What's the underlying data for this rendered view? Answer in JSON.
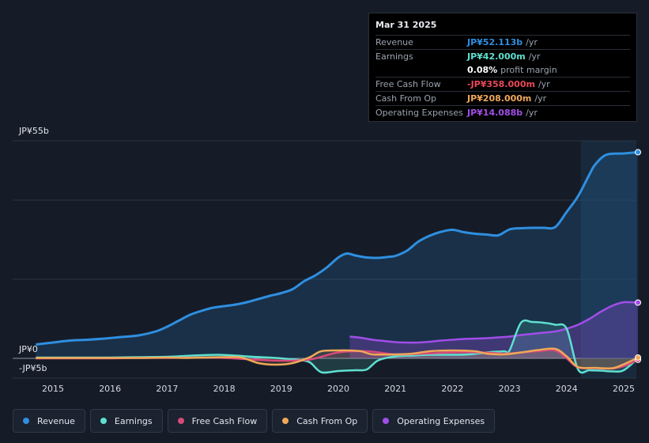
{
  "tooltip": {
    "date": "Mar 31 2025",
    "rows": [
      {
        "label": "Revenue",
        "value": "JP¥52.113b",
        "unit": "/yr",
        "color": "#2f8fe0"
      },
      {
        "label": "Earnings",
        "value": "JP¥42.000m",
        "unit": "/yr",
        "color": "#5ee0d0"
      },
      {
        "label": "",
        "value": "0.08%",
        "unit": "profit margin",
        "color": "#ffffff"
      },
      {
        "label": "Free Cash Flow",
        "value": "-JP¥358.000m",
        "unit": "/yr",
        "color": "#e8485a"
      },
      {
        "label": "Cash From Op",
        "value": "JP¥208.000m",
        "unit": "/yr",
        "color": "#f0a858"
      },
      {
        "label": "Operating Expenses",
        "value": "JP¥14.088b",
        "unit": "/yr",
        "color": "#a14ee8"
      }
    ]
  },
  "legend": [
    {
      "label": "Revenue",
      "color": "#2f8fe0"
    },
    {
      "label": "Earnings",
      "color": "#5ee0d0"
    },
    {
      "label": "Free Cash Flow",
      "color": "#d6497a"
    },
    {
      "label": "Cash From Op",
      "color": "#f0a858"
    },
    {
      "label": "Operating Expenses",
      "color": "#a14ee8"
    }
  ],
  "chart_data": {
    "type": "area",
    "title": "",
    "unit": "JP¥ billions",
    "ylim": [
      -5,
      55
    ],
    "y_tick_labels": {
      "top": "JP¥55b",
      "zero": "JP¥0",
      "bottom": "-JP¥5b"
    },
    "x_tick_labels": [
      "2015",
      "2016",
      "2017",
      "2018",
      "2019",
      "2020",
      "2021",
      "2022",
      "2023",
      "2024",
      "2025"
    ],
    "highlight_from": 2024.25,
    "series": [
      {
        "name": "Revenue",
        "color": "#2f8fe0",
        "x": [
          2014.7,
          2015.0,
          2015.3,
          2015.6,
          2015.9,
          2016.2,
          2016.5,
          2016.8,
          2017.0,
          2017.2,
          2017.4,
          2017.6,
          2017.8,
          2018.0,
          2018.2,
          2018.4,
          2018.6,
          2018.8,
          2019.0,
          2019.2,
          2019.4,
          2019.6,
          2019.8,
          2020.0,
          2020.15,
          2020.3,
          2020.5,
          2020.7,
          2020.9,
          2021.0,
          2021.2,
          2021.4,
          2021.6,
          2021.8,
          2022.0,
          2022.2,
          2022.4,
          2022.6,
          2022.8,
          2023.0,
          2023.2,
          2023.4,
          2023.6,
          2023.8,
          2024.0,
          2024.2,
          2024.4,
          2024.5,
          2024.7,
          2025.0,
          2025.25
        ],
        "values": [
          3.5,
          4.0,
          4.5,
          4.7,
          5.0,
          5.4,
          5.8,
          6.8,
          8.0,
          9.5,
          11.0,
          12.0,
          12.8,
          13.2,
          13.6,
          14.2,
          15.0,
          15.8,
          16.5,
          17.5,
          19.5,
          21.0,
          23.0,
          25.5,
          26.5,
          26.0,
          25.5,
          25.4,
          25.7,
          25.9,
          27.2,
          29.5,
          31.0,
          32.0,
          32.5,
          31.9,
          31.5,
          31.3,
          31.1,
          32.6,
          32.9,
          33.0,
          33.0,
          33.2,
          37.0,
          41.0,
          46.5,
          49.0,
          51.5,
          51.8,
          52.113
        ]
      },
      {
        "name": "Operating Expenses",
        "color": "#a14ee8",
        "x": [
          2020.2,
          2020.4,
          2020.6,
          2020.8,
          2021.0,
          2021.2,
          2021.4,
          2021.6,
          2021.8,
          2022.0,
          2022.2,
          2022.4,
          2022.6,
          2022.8,
          2023.0,
          2023.2,
          2023.4,
          2023.6,
          2023.8,
          2024.0,
          2024.2,
          2024.4,
          2024.6,
          2024.8,
          2025.0,
          2025.25
        ],
        "values": [
          5.5,
          5.2,
          4.7,
          4.4,
          4.1,
          4.0,
          4.0,
          4.2,
          4.5,
          4.7,
          4.9,
          5.0,
          5.1,
          5.3,
          5.5,
          5.9,
          6.2,
          6.5,
          6.8,
          7.5,
          8.5,
          10.0,
          11.8,
          13.3,
          14.2,
          14.088
        ]
      },
      {
        "name": "Earnings",
        "color": "#5ee0d0",
        "x": [
          2014.7,
          2015.0,
          2015.5,
          2016.0,
          2016.5,
          2017.0,
          2017.3,
          2017.6,
          2017.9,
          2018.2,
          2018.5,
          2018.8,
          2019.0,
          2019.3,
          2019.5,
          2019.7,
          2020.0,
          2020.3,
          2020.5,
          2020.7,
          2021.0,
          2021.3,
          2021.6,
          2022.0,
          2022.3,
          2022.6,
          2022.9,
          2023.0,
          2023.2,
          2023.4,
          2023.6,
          2023.8,
          2024.0,
          2024.2,
          2024.4,
          2024.6,
          2024.8,
          2025.0,
          2025.25
        ],
        "values": [
          0.2,
          0.2,
          0.2,
          0.2,
          0.3,
          0.4,
          0.6,
          0.8,
          0.9,
          0.7,
          0.4,
          0.2,
          0.0,
          -0.4,
          -1.0,
          -3.5,
          -3.2,
          -3.0,
          -2.8,
          -0.5,
          0.5,
          0.7,
          0.9,
          0.9,
          1.0,
          1.5,
          1.8,
          2.0,
          9.0,
          9.2,
          9.0,
          8.5,
          7.5,
          -2.8,
          -3.0,
          -3.1,
          -3.3,
          -3.0,
          0.042
        ]
      },
      {
        "name": "Free Cash Flow",
        "color": "#d6497a",
        "x": [
          2014.7,
          2015.0,
          2015.5,
          2016.0,
          2016.5,
          2017.0,
          2017.5,
          2018.0,
          2018.5,
          2019.0,
          2019.5,
          2020.0,
          2020.5,
          2021.0,
          2021.5,
          2022.0,
          2022.5,
          2022.9,
          2023.2,
          2023.5,
          2023.8,
          2024.0,
          2024.2,
          2024.5,
          2024.8,
          2025.0,
          2025.25
        ],
        "values": [
          0.0,
          0.0,
          0.0,
          0.0,
          0.1,
          0.1,
          0.2,
          0.1,
          -0.3,
          -0.6,
          -0.3,
          1.5,
          1.8,
          1.0,
          1.2,
          1.5,
          1.5,
          1.2,
          1.5,
          1.8,
          2.0,
          0.0,
          -2.3,
          -2.5,
          -2.6,
          -2.0,
          -0.358
        ]
      },
      {
        "name": "Cash From Op",
        "color": "#f0a858",
        "x": [
          2014.7,
          2015.0,
          2015.5,
          2016.0,
          2016.5,
          2017.0,
          2017.3,
          2017.6,
          2018.0,
          2018.3,
          2018.6,
          2018.9,
          2019.2,
          2019.5,
          2019.7,
          2020.0,
          2020.2,
          2020.4,
          2020.6,
          2021.0,
          2021.3,
          2021.6,
          2022.0,
          2022.4,
          2022.6,
          2022.9,
          2023.2,
          2023.5,
          2023.8,
          2024.0,
          2024.2,
          2024.5,
          2024.8,
          2025.0,
          2025.25
        ],
        "values": [
          0.1,
          0.1,
          0.1,
          0.1,
          0.1,
          0.2,
          0.1,
          0.2,
          0.3,
          0.2,
          -1.2,
          -1.6,
          -1.2,
          0.3,
          1.8,
          2.0,
          2.0,
          1.8,
          1.0,
          1.0,
          1.2,
          1.8,
          2.0,
          1.8,
          1.2,
          1.0,
          1.5,
          2.1,
          2.4,
          0.5,
          -2.2,
          -2.4,
          -2.5,
          -1.5,
          0.208
        ]
      }
    ]
  }
}
